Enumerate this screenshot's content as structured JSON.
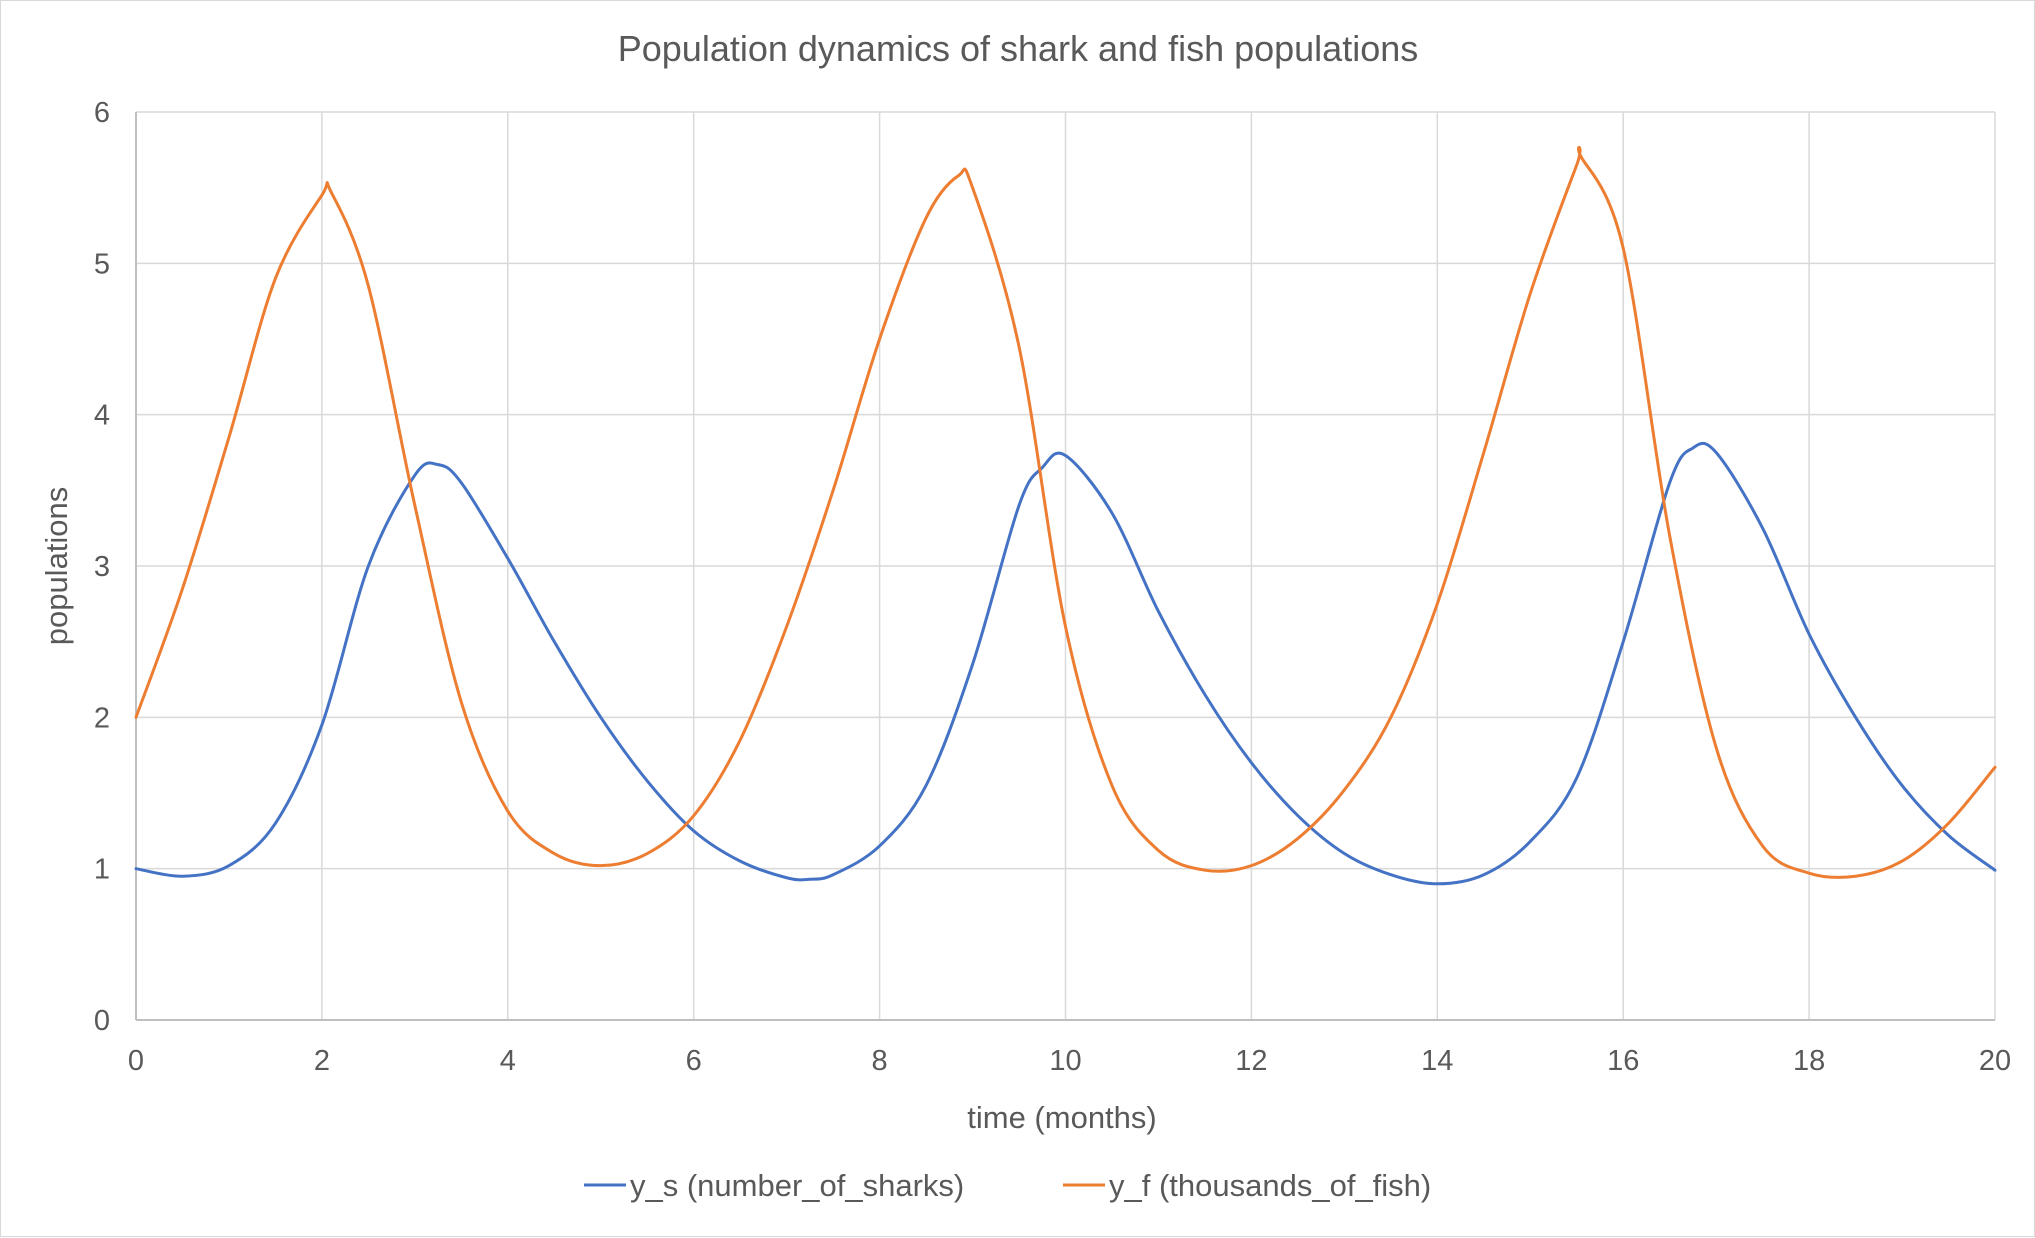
{
  "chart_data": {
    "type": "line",
    "title": "Population dynamics of shark and fish populations",
    "xlabel": "time (months)",
    "ylabel": "populations",
    "xlim": [
      0,
      20
    ],
    "ylim": [
      0,
      6
    ],
    "x_ticks": [
      0,
      2,
      4,
      6,
      8,
      10,
      12,
      14,
      16,
      18,
      20
    ],
    "y_ticks": [
      0,
      1,
      2,
      3,
      4,
      5,
      6
    ],
    "grid": true,
    "legend_position": "bottom",
    "series": [
      {
        "name": "y_s (number_of_sharks)",
        "color": "#4472c4",
        "x": [
          0,
          0.5,
          1.0,
          1.5,
          2.0,
          2.5,
          3.0,
          3.25,
          3.5,
          4.0,
          4.5,
          5.0,
          5.5,
          6.0,
          6.5,
          7.0,
          7.25,
          7.5,
          8.0,
          8.5,
          9.0,
          9.5,
          9.75,
          10.0,
          10.5,
          11.0,
          11.5,
          12.0,
          12.5,
          13.0,
          13.5,
          14.0,
          14.5,
          15.0,
          15.5,
          16.0,
          16.5,
          16.75,
          17.0,
          17.5,
          18.0,
          18.5,
          19.0,
          19.5,
          20.0
        ],
        "y": [
          1.0,
          0.95,
          1.02,
          1.3,
          1.95,
          3.0,
          3.6,
          3.67,
          3.55,
          3.05,
          2.5,
          2.0,
          1.58,
          1.25,
          1.05,
          0.94,
          0.93,
          0.96,
          1.15,
          1.55,
          2.35,
          3.4,
          3.65,
          3.73,
          3.35,
          2.7,
          2.15,
          1.7,
          1.35,
          1.1,
          0.96,
          0.9,
          0.96,
          1.18,
          1.6,
          2.5,
          3.55,
          3.78,
          3.75,
          3.25,
          2.55,
          2.0,
          1.55,
          1.22,
          0.99
        ]
      },
      {
        "name": "y_f (thousands_of_fish)",
        "color": "#ed7d31",
        "x": [
          0,
          0.5,
          1.0,
          1.5,
          2.0,
          2.1,
          2.5,
          3.0,
          3.5,
          4.0,
          4.5,
          5.0,
          5.5,
          6.0,
          6.5,
          7.0,
          7.5,
          8.0,
          8.5,
          8.85,
          9.0,
          9.5,
          10.0,
          10.5,
          11.0,
          11.5,
          12.0,
          12.5,
          13.0,
          13.5,
          14.0,
          14.5,
          15.0,
          15.5,
          15.55,
          16.0,
          16.5,
          17.0,
          17.5,
          18.0,
          18.5,
          19.0,
          19.5,
          20.0
        ],
        "y": [
          2.0,
          2.85,
          3.85,
          4.9,
          5.45,
          5.47,
          4.85,
          3.4,
          2.1,
          1.38,
          1.1,
          1.02,
          1.1,
          1.35,
          1.85,
          2.6,
          3.5,
          4.5,
          5.3,
          5.58,
          5.5,
          4.45,
          2.6,
          1.55,
          1.12,
          0.99,
          1.02,
          1.2,
          1.52,
          2.0,
          2.75,
          3.75,
          4.8,
          5.65,
          5.7,
          5.1,
          3.2,
          1.8,
          1.15,
          0.97,
          0.95,
          1.05,
          1.3,
          1.67
        ]
      }
    ]
  }
}
